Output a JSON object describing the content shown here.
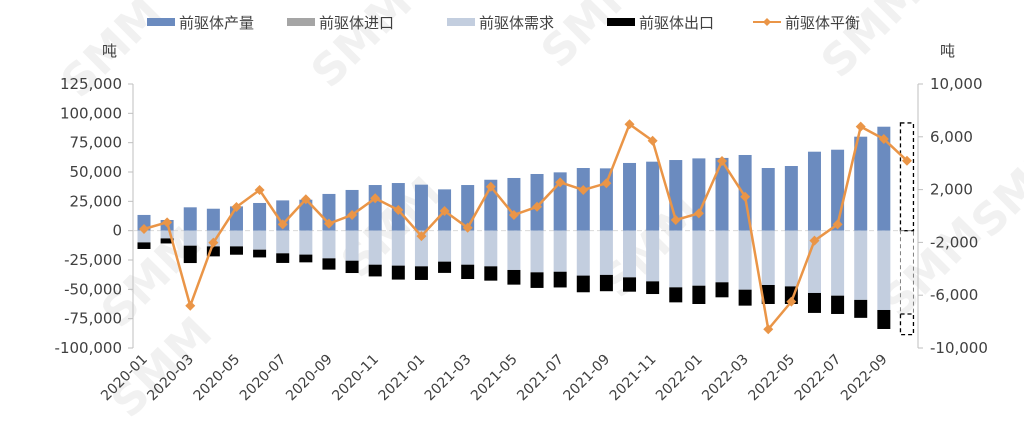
{
  "chart_data": {
    "type": "bar",
    "title": "",
    "ylabel": "吨",
    "y2label": "吨",
    "ylim": [
      -100000,
      125000
    ],
    "y2lim": [
      -10000,
      10000
    ],
    "yticks": [
      "125,000",
      "100,000",
      "75,000",
      "50,000",
      "25,000",
      "0",
      "-25,000",
      "-50,000",
      "-75,000",
      "-100,000"
    ],
    "y2ticks": [
      "10,000",
      "6,000",
      "2,000",
      "-2,000",
      "-6,000",
      "-10,000"
    ],
    "grid": false,
    "legend_position": "top",
    "watermark": "SMM",
    "categories": [
      "2020-01",
      "2020-02",
      "2020-03",
      "2020-04",
      "2020-05",
      "2020-06",
      "2020-07",
      "2020-08",
      "2020-09",
      "2020-10",
      "2020-11",
      "2020-12",
      "2021-01",
      "2021-02",
      "2021-03",
      "2021-04",
      "2021-05",
      "2021-06",
      "2021-07",
      "2021-08",
      "2021-09",
      "2021-10",
      "2021-11",
      "2021-12",
      "2022-01",
      "2022-02",
      "2022-03",
      "2022-04",
      "2022-05",
      "2022-06",
      "2022-07",
      "2022-08",
      "2022-09",
      "2022-10"
    ],
    "xtick_labels": [
      "2020-01",
      "2020-03",
      "2020-05",
      "2020-07",
      "2020-09",
      "2020-11",
      "2021-01",
      "2021-03",
      "2021-05",
      "2021-07",
      "2021-09",
      "2021-11",
      "2022-01",
      "2022-03",
      "2022-05",
      "2022-07",
      "2022-09"
    ],
    "estimated_months": [
      "2022-10"
    ],
    "series": [
      {
        "name": "前驱体产量",
        "type": "bar",
        "axis": "left",
        "color": "#6b8bbf",
        "values": [
          13400,
          9100,
          19900,
          18700,
          20700,
          23600,
          25800,
          26400,
          31300,
          34700,
          38900,
          40600,
          39200,
          35200,
          38900,
          43400,
          44900,
          48300,
          49700,
          53400,
          53100,
          57700,
          58800,
          60200,
          61600,
          62000,
          64500,
          53400,
          55100,
          67300,
          69000,
          80100,
          88600,
          91800
        ]
      },
      {
        "name": "前驱体进口",
        "type": "bar",
        "axis": "left",
        "color": "#a5a5a5",
        "values": [
          0,
          0,
          0,
          0,
          0,
          0,
          0,
          0,
          0,
          0,
          0,
          0,
          0,
          0,
          0,
          0,
          0,
          0,
          0,
          0,
          0,
          0,
          0,
          0,
          0,
          0,
          0,
          0,
          0,
          0,
          0,
          0,
          0,
          0
        ]
      },
      {
        "name": "前驱体需求",
        "type": "bar",
        "axis": "left",
        "color": "#c3cedf",
        "values": [
          -10000,
          -6600,
          -12800,
          -13400,
          -13400,
          -16200,
          -19300,
          -20400,
          -23600,
          -25600,
          -29000,
          -29800,
          -30400,
          -26400,
          -29000,
          -30400,
          -33500,
          -35500,
          -35000,
          -38300,
          -37700,
          -39800,
          -43200,
          -48300,
          -46900,
          -44000,
          -50300,
          -46300,
          -47500,
          -53100,
          -55400,
          -59000,
          -67600,
          -71000
        ]
      },
      {
        "name": "前驱体出口",
        "type": "bar",
        "axis": "left",
        "color": "#000000",
        "values": [
          -5600,
          -4300,
          -14800,
          -8500,
          -7100,
          -6600,
          -8200,
          -6600,
          -9600,
          -10500,
          -10000,
          -11900,
          -11600,
          -9600,
          -12200,
          -12200,
          -12500,
          -13300,
          -13400,
          -14200,
          -13900,
          -12200,
          -10800,
          -12800,
          -15600,
          -12800,
          -13600,
          -16200,
          -15000,
          -17000,
          -15600,
          -15300,
          -16200,
          -17600
        ]
      },
      {
        "name": "前驱体平衡",
        "type": "line",
        "axis": "right",
        "color": "#ea9547",
        "values": [
          -985,
          -480,
          -6800,
          -2020,
          680,
          1970,
          -630,
          1270,
          -580,
          80,
          1340,
          450,
          -1520,
          380,
          -890,
          2220,
          80,
          700,
          2550,
          1970,
          2480,
          6950,
          5700,
          -300,
          200,
          4170,
          1460,
          -8580,
          -6490,
          -1870,
          -630,
          6770,
          5830,
          4190
        ]
      }
    ]
  }
}
